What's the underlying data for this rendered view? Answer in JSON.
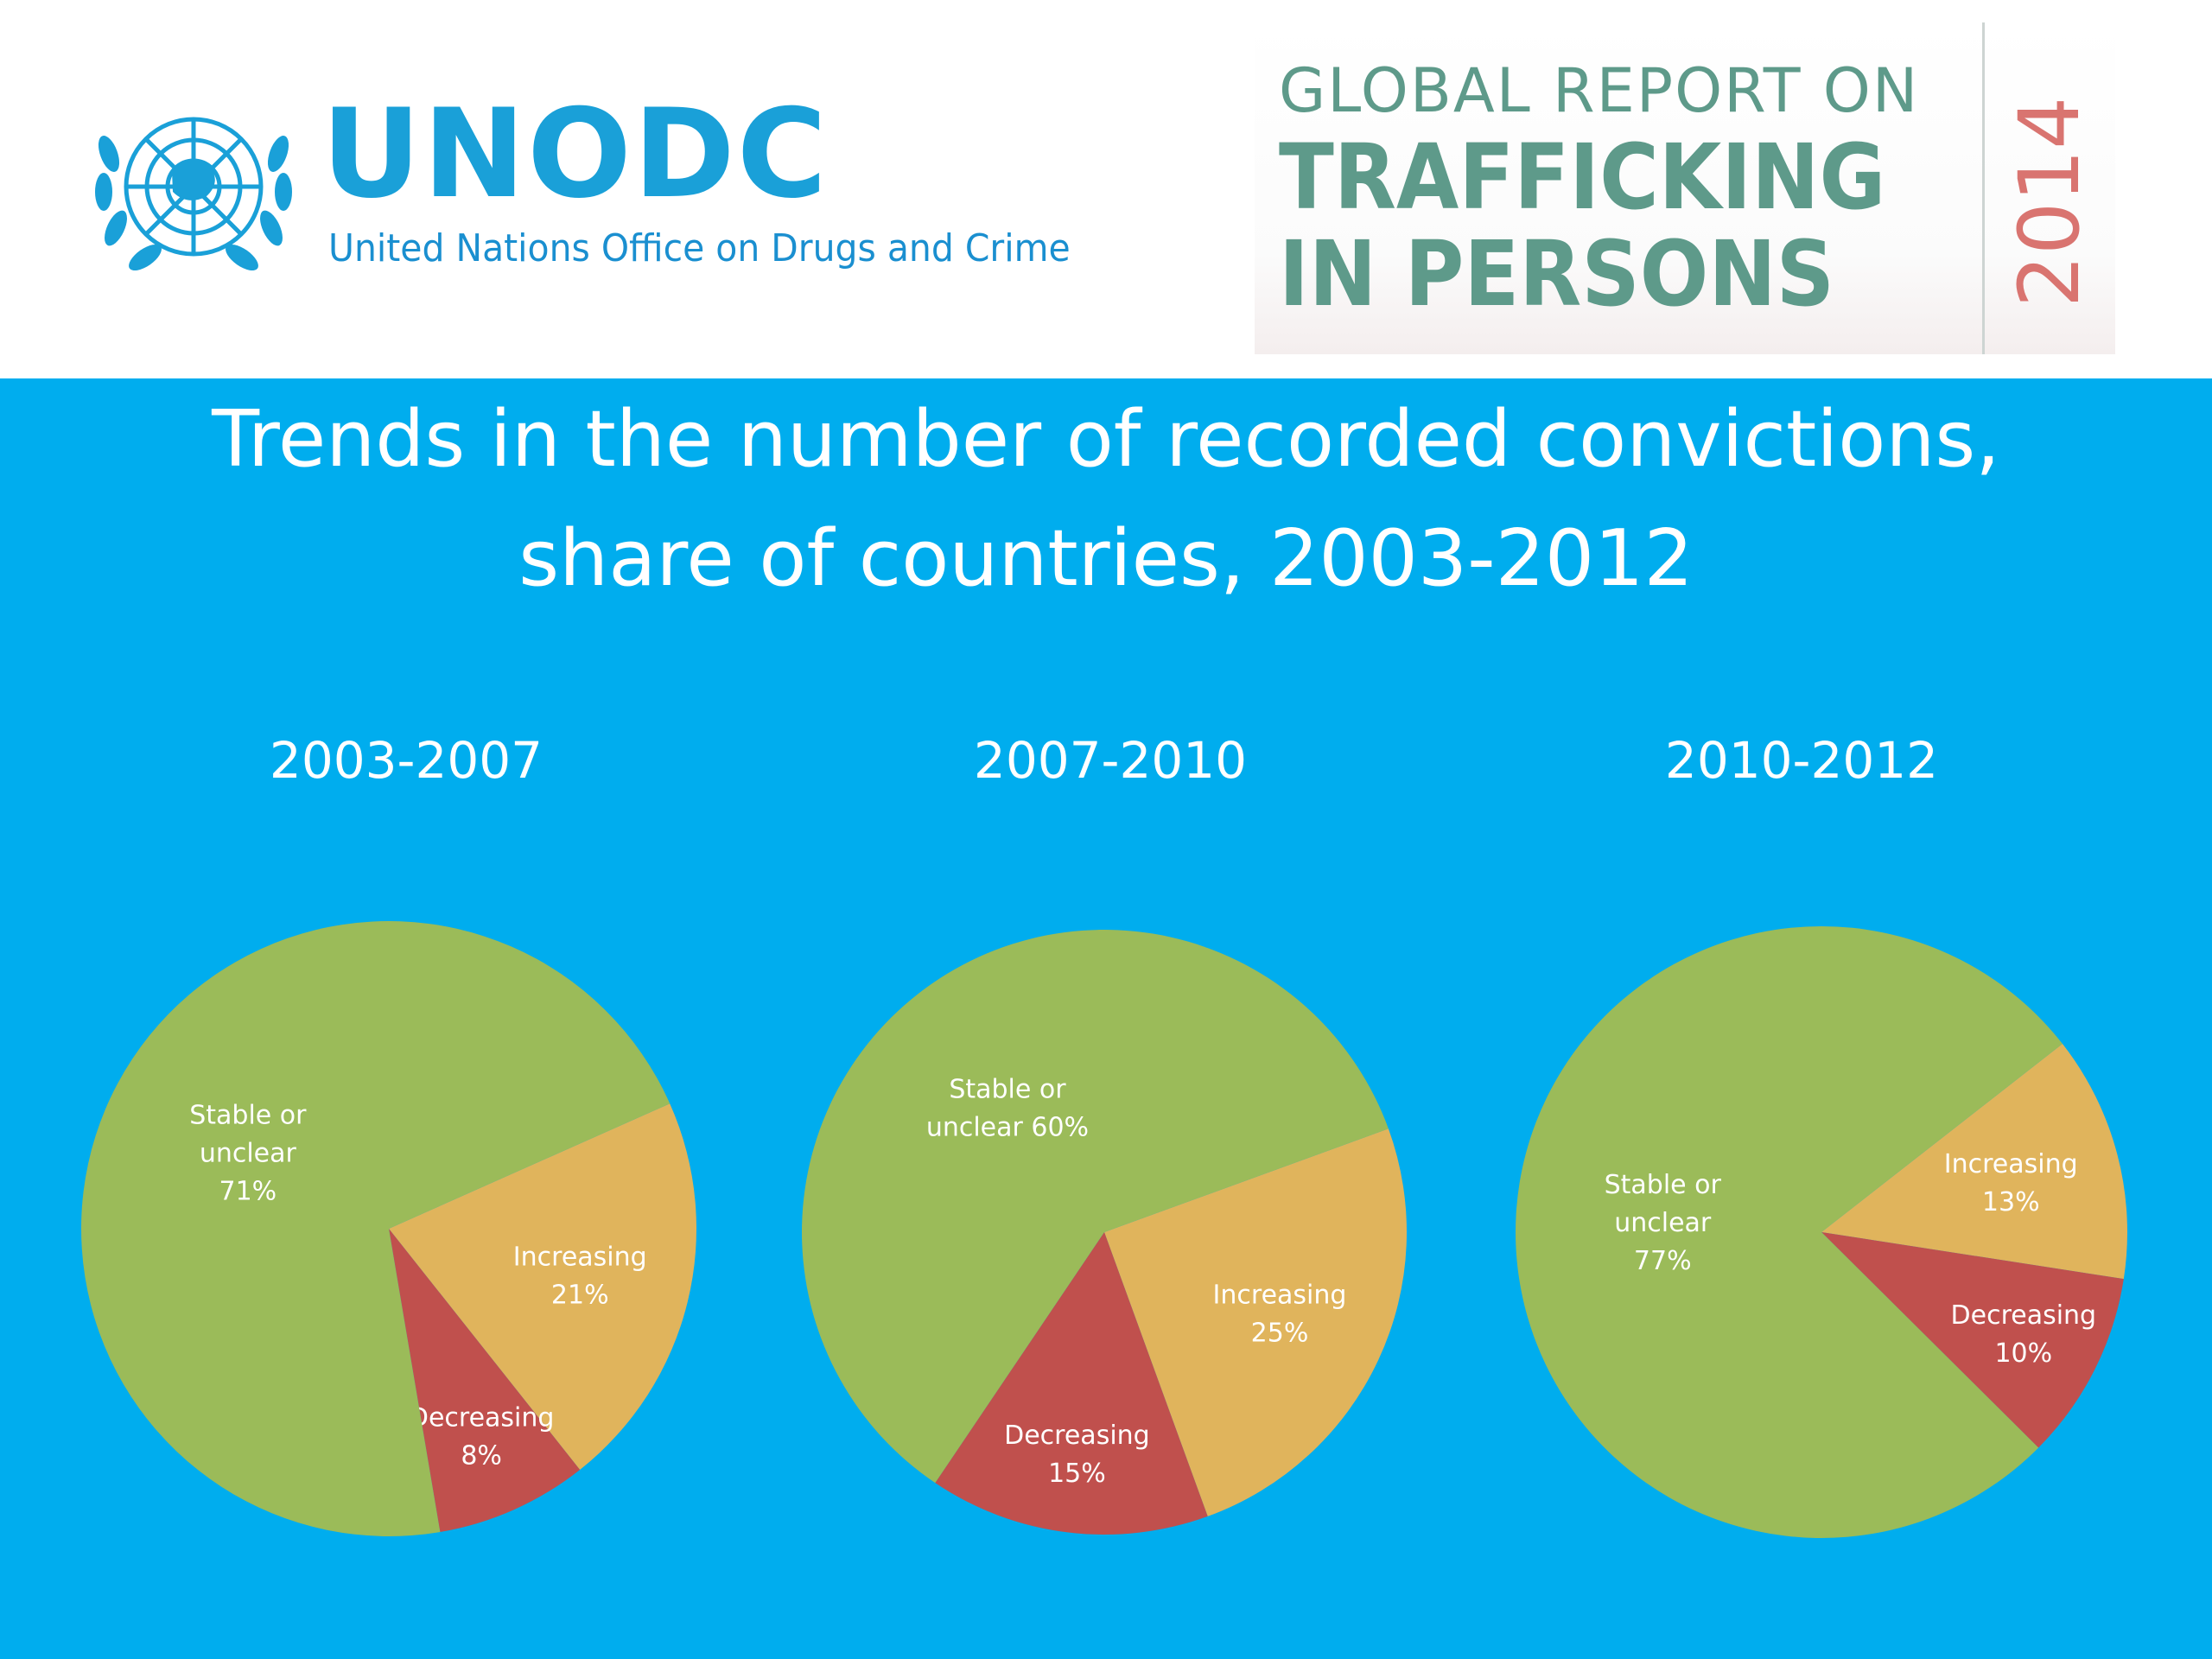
{
  "header": {
    "org_acronym": "UNODC",
    "org_name": "United Nations Office on Drugs and Crime",
    "report_line1": "GLOBAL REPORT ON",
    "report_line2": "TRAFFICKING",
    "report_line3": "IN PERSONS",
    "report_year": "2014"
  },
  "title_line1": "Trends in the number of recorded convictions,",
  "title_line2": "share of countries, 2003-2012",
  "colors": {
    "background": "#00adee",
    "stable": "#9bbb59",
    "increasing": "#e0b45c",
    "decreasing": "#c0504d",
    "text": "#ffffff"
  },
  "chart_data": [
    {
      "type": "pie",
      "title": "2003-2007",
      "slices": [
        {
          "label": "Increasing",
          "value": 21,
          "value_label": "21%",
          "label_lines": [
            "Increasing",
            "21%"
          ],
          "color": "#e0b45c"
        },
        {
          "label": "Decreasing",
          "value": 8,
          "value_label": "8%",
          "label_lines": [
            "Decreasing",
            "8%"
          ],
          "color": "#c0504d"
        },
        {
          "label": "Stable or unclear",
          "value": 71,
          "value_label": "71%",
          "label_lines": [
            "Stable or",
            "unclear",
            "71%"
          ],
          "color": "#9bbb59"
        }
      ]
    },
    {
      "type": "pie",
      "title": "2007-2010",
      "slices": [
        {
          "label": "Increasing",
          "value": 25,
          "value_label": "25%",
          "label_lines": [
            "Increasing",
            "25%"
          ],
          "color": "#e0b45c"
        },
        {
          "label": "Decreasing",
          "value": 15,
          "value_label": "15%",
          "label_lines": [
            "Decreasing",
            "15%"
          ],
          "color": "#c0504d"
        },
        {
          "label": "Stable or unclear",
          "value": 60,
          "value_label": "60%",
          "label_lines": [
            "Stable or",
            "unclear 60%"
          ],
          "color": "#9bbb59"
        }
      ]
    },
    {
      "type": "pie",
      "title": "2010-2012",
      "slices": [
        {
          "label": "Increasing",
          "value": 13,
          "value_label": "13%",
          "label_lines": [
            "Increasing",
            "13%"
          ],
          "color": "#e0b45c"
        },
        {
          "label": "Decreasing",
          "value": 10,
          "value_label": "10%",
          "label_lines": [
            "Decreasing",
            "10%"
          ],
          "color": "#c0504d"
        },
        {
          "label": "Stable or unclear",
          "value": 77,
          "value_label": "77%",
          "label_lines": [
            "Stable or",
            "unclear",
            "77%"
          ],
          "color": "#9bbb59"
        }
      ]
    }
  ]
}
